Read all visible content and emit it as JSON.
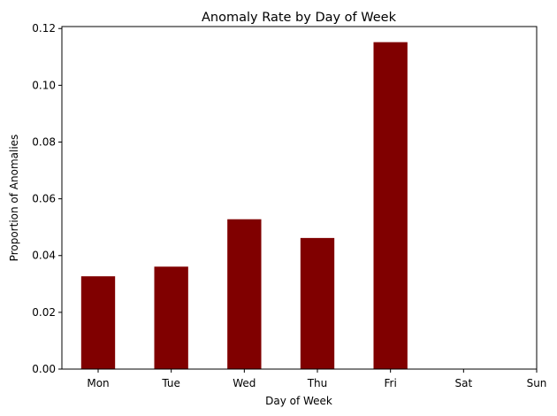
{
  "chart_data": {
    "type": "bar",
    "title": "Anomaly Rate by Day of Week",
    "xlabel": "Day of Week",
    "ylabel": "Proportion of Anomalies",
    "categories": [
      "Mon",
      "Tue",
      "Wed",
      "Thu",
      "Fri",
      "Sat",
      "Sun"
    ],
    "values": [
      0.0327,
      0.0361,
      0.0528,
      0.0462,
      0.1152,
      0,
      0
    ],
    "ylim": [
      0,
      0.1207
    ],
    "yticks": [
      0.0,
      0.02,
      0.04,
      0.06,
      0.08,
      0.1,
      0.12
    ],
    "ytick_labels": [
      "0.00",
      "0.02",
      "0.04",
      "0.06",
      "0.08",
      "0.10",
      "0.12"
    ],
    "bar_color": "#800000",
    "grid": false,
    "legend": "none"
  }
}
